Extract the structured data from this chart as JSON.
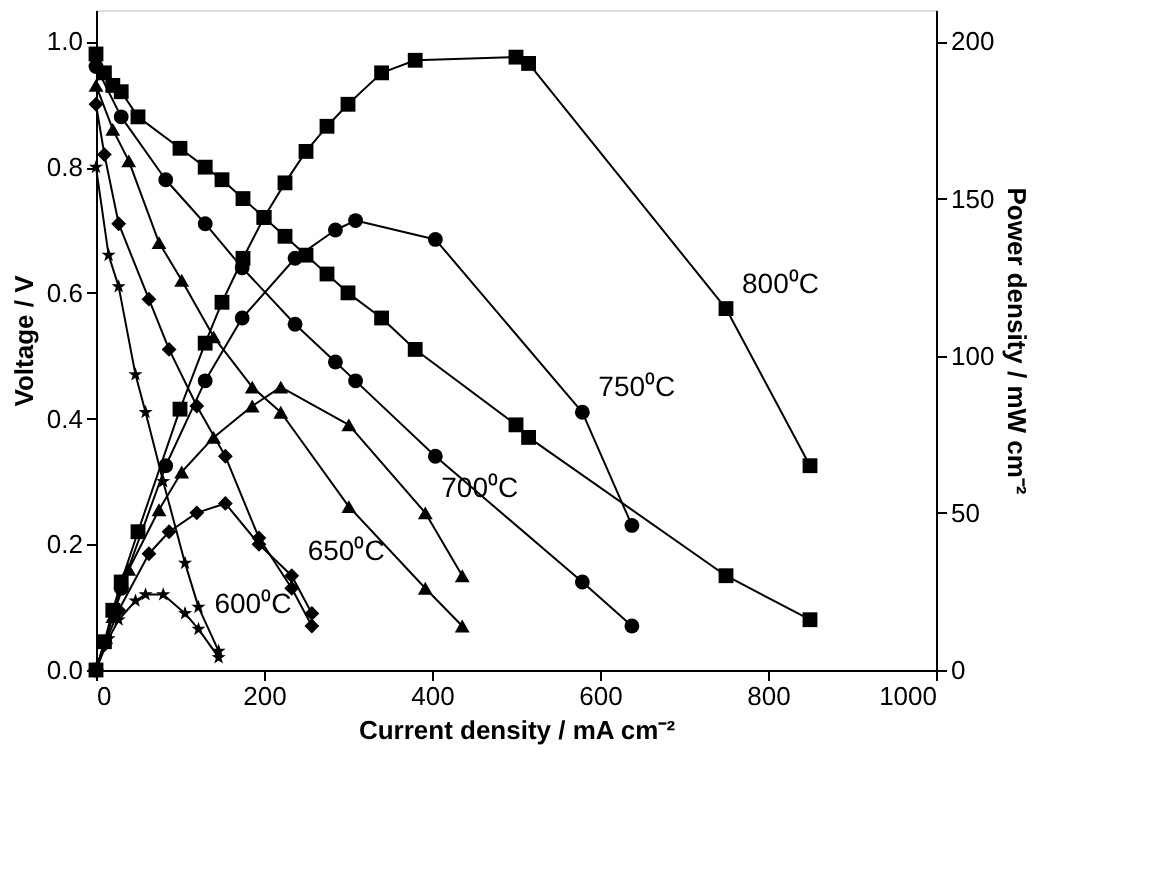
{
  "chart_data": {
    "type": "line",
    "xlabel": "Current density / mA cm⁻²",
    "ylabel": "Voltage / V",
    "y2label": "Power density / mW cm⁻²",
    "xlim": [
      0,
      1000
    ],
    "xticks": [
      0,
      200,
      400,
      600,
      800,
      1000
    ],
    "ylim": [
      0,
      1.05
    ],
    "yticks": [
      {
        "value": 0,
        "label": "0.0"
      },
      0.2,
      0.4,
      0.6,
      0.8,
      {
        "value": 1,
        "label": "1.0"
      }
    ],
    "y2lim": [
      0,
      210
    ],
    "y2ticks": [
      0,
      50,
      100,
      150,
      200
    ],
    "grid": false,
    "line_style": "solid",
    "series": [
      {
        "color": "#000000",
        "marker": "square",
        "x": [
          0,
          10,
          20,
          30,
          50,
          100,
          130,
          150,
          175,
          200,
          225,
          250,
          275,
          300,
          340,
          380,
          500,
          515,
          750,
          850
        ],
        "values": [
          0.98,
          0.95,
          0.93,
          0.92,
          0.88,
          0.83,
          0.8,
          0.78,
          0.75,
          0.72,
          0.69,
          0.66,
          0.63,
          0.6,
          0.56,
          0.51,
          0.39,
          0.37,
          0.15,
          0.08
        ]
      },
      {
        "color": "#000000",
        "marker": "square",
        "axis": "y2",
        "x": [
          0,
          10,
          20,
          30,
          50,
          100,
          130,
          150,
          175,
          200,
          225,
          250,
          275,
          300,
          340,
          380,
          500,
          515,
          750,
          850
        ],
        "values": [
          0,
          9,
          19,
          28,
          44,
          83,
          104,
          117,
          131,
          144,
          155,
          165,
          173,
          180,
          190,
          194,
          195,
          193,
          115,
          65
        ]
      },
      {
        "color": "#000000",
        "marker": "circle",
        "x": [
          0,
          30,
          83,
          130,
          174,
          237,
          285,
          309,
          404,
          579,
          638
        ],
        "values": [
          0.96,
          0.88,
          0.78,
          0.71,
          0.64,
          0.55,
          0.49,
          0.46,
          0.34,
          0.14,
          0.07
        ]
      },
      {
        "color": "#000000",
        "marker": "circle",
        "axis": "y2",
        "x": [
          0,
          30,
          83,
          130,
          174,
          237,
          285,
          309,
          404,
          579,
          638
        ],
        "values": [
          0,
          26,
          65,
          92,
          112,
          131,
          140,
          143,
          137,
          82,
          46
        ]
      },
      {
        "color": "#000000",
        "marker": "triangle",
        "x": [
          0,
          20,
          39,
          75,
          102,
          140,
          186,
          220,
          301,
          392,
          436
        ],
        "values": [
          0.93,
          0.86,
          0.81,
          0.68,
          0.62,
          0.53,
          0.45,
          0.41,
          0.26,
          0.13,
          0.07
        ]
      },
      {
        "color": "#000000",
        "marker": "triangle",
        "axis": "y2",
        "x": [
          0,
          20,
          39,
          75,
          102,
          140,
          186,
          220,
          301,
          392,
          436
        ],
        "values": [
          0,
          17,
          32,
          51,
          63,
          74,
          84,
          90,
          78,
          50,
          30
        ]
      },
      {
        "color": "#000000",
        "marker": "diamond",
        "x": [
          0,
          10,
          27,
          63,
          87,
          120,
          154,
          194,
          233,
          257
        ],
        "values": [
          0.9,
          0.82,
          0.71,
          0.59,
          0.51,
          0.42,
          0.34,
          0.21,
          0.13,
          0.07
        ]
      },
      {
        "color": "#000000",
        "marker": "diamond",
        "axis": "y2",
        "x": [
          0,
          10,
          27,
          63,
          87,
          120,
          154,
          194,
          233,
          257
        ],
        "values": [
          0,
          8,
          19,
          37,
          44,
          50,
          53,
          40,
          30,
          18
        ]
      },
      {
        "color": "#000000",
        "marker": "star",
        "x": [
          0,
          15,
          27,
          47,
          59,
          80,
          106,
          122,
          146
        ],
        "values": [
          0.8,
          0.66,
          0.61,
          0.47,
          0.41,
          0.3,
          0.17,
          0.1,
          0.03
        ]
      },
      {
        "color": "#000000",
        "marker": "star",
        "axis": "y2",
        "x": [
          0,
          15,
          27,
          47,
          59,
          80,
          106,
          122,
          146
        ],
        "values": [
          0,
          10,
          16,
          22,
          24,
          24,
          18,
          13,
          4
        ]
      }
    ],
    "annotations": [
      "800⁰C",
      "750⁰C",
      "700⁰C",
      "650⁰C",
      "600⁰C"
    ]
  }
}
